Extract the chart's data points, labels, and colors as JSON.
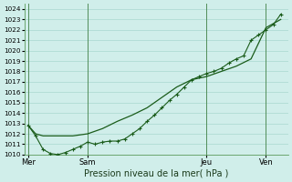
{
  "xlabel": "Pression niveau de la mer( hPa )",
  "ylim": [
    1010,
    1024.5
  ],
  "yticks": [
    1010,
    1011,
    1012,
    1013,
    1014,
    1015,
    1016,
    1017,
    1018,
    1019,
    1020,
    1021,
    1022,
    1023,
    1024
  ],
  "xtick_labels": [
    "Mer",
    "Sam",
    "Jeu",
    "Ven"
  ],
  "xtick_positions": [
    0,
    16,
    48,
    64
  ],
  "xlim": [
    -1,
    70
  ],
  "background_color": "#d0eeea",
  "grid_color": "#a8d8d0",
  "line_color": "#1a5c1a",
  "vline_color": "#3a7a3a",
  "vline_positions": [
    0,
    16,
    48,
    64
  ],
  "series1_x": [
    0,
    2,
    4,
    8,
    12,
    16,
    20,
    24,
    28,
    32,
    36,
    40,
    44,
    48,
    52,
    56,
    60,
    64,
    68
  ],
  "series1_y": [
    1012.8,
    1012.0,
    1011.8,
    1011.8,
    1011.8,
    1012.0,
    1012.5,
    1013.2,
    1013.8,
    1014.5,
    1015.5,
    1016.5,
    1017.2,
    1017.5,
    1018.0,
    1018.5,
    1019.2,
    1022.2,
    1023.0
  ],
  "series2_x": [
    0,
    2,
    4,
    6,
    8,
    10,
    12,
    14,
    16,
    18,
    20,
    22,
    24,
    26,
    28,
    30,
    32,
    34,
    36,
    38,
    40,
    42,
    44,
    46,
    48,
    50,
    52,
    54,
    56,
    58,
    60,
    62,
    64,
    66,
    68
  ],
  "series2_y": [
    1012.8,
    1011.8,
    1010.5,
    1010.1,
    1010.0,
    1010.2,
    1010.5,
    1010.8,
    1011.2,
    1011.0,
    1011.2,
    1011.3,
    1011.3,
    1011.5,
    1012.0,
    1012.5,
    1013.2,
    1013.8,
    1014.5,
    1015.2,
    1015.8,
    1016.5,
    1017.2,
    1017.5,
    1017.8,
    1018.0,
    1018.3,
    1018.8,
    1019.2,
    1019.5,
    1021.0,
    1021.5,
    1022.0,
    1022.5,
    1023.5
  ]
}
